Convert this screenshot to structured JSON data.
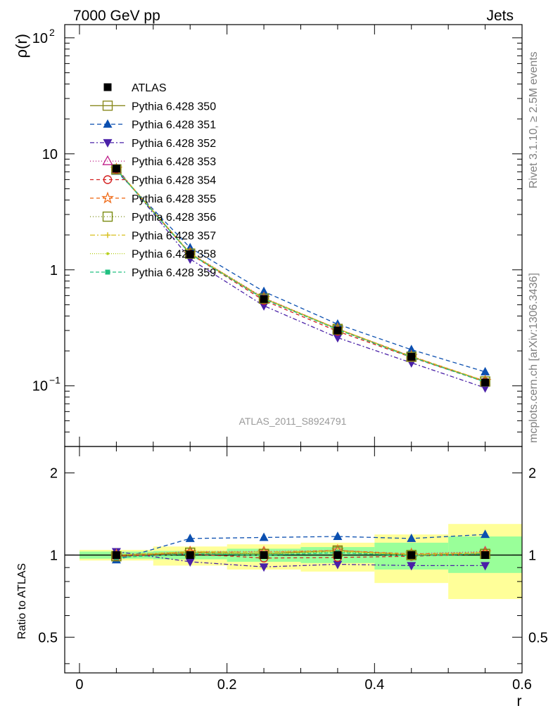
{
  "header": {
    "left": "7000 GeV pp",
    "right": "Jets"
  },
  "side_text": {
    "rivet": "Rivet 3.1.10, ≥ 2.5M events",
    "source": "mcplots.cern.ch [arXiv:1306.3436]"
  },
  "analysis_label": "ATLAS_2011_S8924791",
  "chart_data": [
    {
      "type": "line",
      "ylabel": "ρ(r)",
      "yscale": "log",
      "ylim": [
        0.03,
        130
      ],
      "xlim": [
        -0.02,
        0.6
      ],
      "yticks": [
        {
          "v": 0.1,
          "base": "10",
          "exp": "−1"
        },
        {
          "v": 1,
          "base": "1",
          "exp": ""
        },
        {
          "v": 10,
          "base": "10",
          "exp": ""
        },
        {
          "v": 100,
          "base": "10",
          "exp": "2"
        }
      ],
      "x": [
        0.05,
        0.15,
        0.25,
        0.35,
        0.45,
        0.55
      ],
      "series": [
        {
          "name": "ATLAS",
          "color": "#000000",
          "marker": "square-filled",
          "dash": "none",
          "values": [
            7.45,
            1.36,
            0.56,
            0.3,
            0.178,
            0.107
          ],
          "data": true
        },
        {
          "name": "Pythia 6.428 350",
          "color": "#8a8a20",
          "marker": "square-open",
          "dash": "solid",
          "values": [
            7.3,
            1.38,
            0.565,
            0.31,
            0.178,
            0.109
          ]
        },
        {
          "name": "Pythia 6.428 351",
          "color": "#0b4fb0",
          "marker": "triangle-up",
          "dash": "6,4",
          "values": [
            7.1,
            1.55,
            0.65,
            0.34,
            0.205,
            0.132
          ]
        },
        {
          "name": "Pythia 6.428 352",
          "color": "#4a21a8",
          "marker": "triangle-down",
          "dash": "6,3,2,3",
          "values": [
            7.6,
            1.24,
            0.49,
            0.26,
            0.158,
            0.096
          ]
        },
        {
          "name": "Pythia 6.428 353",
          "color": "#c0208a",
          "marker": "triangle-up-open",
          "dash": "1,3",
          "values": [
            7.4,
            1.4,
            0.575,
            0.31,
            0.18,
            0.11
          ]
        },
        {
          "name": "Pythia 6.428 354",
          "color": "#d42020",
          "marker": "circle-open",
          "dash": "5,4",
          "values": [
            7.35,
            1.37,
            0.545,
            0.295,
            0.176,
            0.108
          ]
        },
        {
          "name": "Pythia 6.428 355",
          "color": "#f07020",
          "marker": "star-open",
          "dash": "5,4",
          "values": [
            7.4,
            1.39,
            0.57,
            0.31,
            0.18,
            0.11
          ]
        },
        {
          "name": "Pythia 6.428 356",
          "color": "#7a8a10",
          "marker": "square-open",
          "dash": "1,3",
          "values": [
            7.35,
            1.38,
            0.565,
            0.305,
            0.178,
            0.109
          ]
        },
        {
          "name": "Pythia 6.428 357",
          "color": "#d8c020",
          "marker": "cross",
          "dash": "7,3,2,3",
          "values": [
            7.4,
            1.39,
            0.57,
            0.31,
            0.179,
            0.11
          ]
        },
        {
          "name": "Pythia 6.428 358",
          "color": "#b8d020",
          "marker": "dot",
          "dash": "1,2",
          "values": [
            7.4,
            1.38,
            0.565,
            0.305,
            0.178,
            0.109
          ]
        },
        {
          "name": "Pythia 6.428 359",
          "color": "#20c080",
          "marker": "square-filled-small",
          "dash": "5,3",
          "values": [
            7.3,
            1.37,
            0.56,
            0.305,
            0.177,
            0.108
          ]
        }
      ]
    },
    {
      "type": "line",
      "ylabel": "Ratio to ATLAS",
      "xlabel": "r",
      "yscale": "log",
      "ylim": [
        0.37,
        2.5
      ],
      "xlim": [
        -0.02,
        0.6
      ],
      "yticks": [
        {
          "v": 0.5,
          "label": "0.5"
        },
        {
          "v": 1,
          "label": "1"
        },
        {
          "v": 2,
          "label": "2"
        }
      ],
      "xticks": [
        {
          "v": 0,
          "label": "0"
        },
        {
          "v": 0.2,
          "label": "0.2"
        },
        {
          "v": 0.4,
          "label": "0.4"
        },
        {
          "v": 0.6,
          "label": "0.6"
        }
      ],
      "bands": [
        {
          "x0": 0.0,
          "x1": 0.1,
          "yellow": [
            0.955,
            1.045
          ],
          "green": [
            0.97,
            1.03
          ]
        },
        {
          "x0": 0.1,
          "x1": 0.2,
          "yellow": [
            0.915,
            1.075
          ],
          "green": [
            0.965,
            1.035
          ]
        },
        {
          "x0": 0.2,
          "x1": 0.3,
          "yellow": [
            0.885,
            1.095
          ],
          "green": [
            0.945,
            1.055
          ]
        },
        {
          "x0": 0.3,
          "x1": 0.4,
          "yellow": [
            0.87,
            1.11
          ],
          "green": [
            0.935,
            1.07
          ]
        },
        {
          "x0": 0.4,
          "x1": 0.5,
          "yellow": [
            0.79,
            1.19
          ],
          "green": [
            0.885,
            1.11
          ]
        },
        {
          "x0": 0.5,
          "x1": 0.6,
          "yellow": [
            0.69,
            1.3
          ],
          "green": [
            0.86,
            1.17
          ]
        }
      ],
      "x": [
        0.05,
        0.15,
        0.25,
        0.35,
        0.45,
        0.55
      ],
      "series": [
        {
          "name": "Pythia 6.428 350",
          "values": [
            0.99,
            1.02,
            1.01,
            1.04,
            1.0,
            1.01
          ]
        },
        {
          "name": "Pythia 6.428 351",
          "values": [
            0.96,
            1.15,
            1.16,
            1.17,
            1.15,
            1.19
          ]
        },
        {
          "name": "Pythia 6.428 352",
          "values": [
            1.03,
            0.945,
            0.905,
            0.925,
            0.915,
            0.915
          ]
        },
        {
          "name": "Pythia 6.428 353",
          "values": [
            1.0,
            1.03,
            1.03,
            1.04,
            1.01,
            1.03
          ]
        },
        {
          "name": "Pythia 6.428 354",
          "values": [
            0.99,
            1.01,
            0.975,
            0.98,
            0.99,
            1.01
          ]
        },
        {
          "name": "Pythia 6.428 355",
          "values": [
            1.0,
            1.025,
            1.025,
            1.04,
            1.01,
            1.02
          ]
        },
        {
          "name": "Pythia 6.428 356",
          "values": [
            0.99,
            1.02,
            1.01,
            1.03,
            1.0,
            1.01
          ]
        },
        {
          "name": "Pythia 6.428 357",
          "values": [
            1.0,
            1.03,
            1.025,
            1.035,
            1.005,
            1.02
          ]
        },
        {
          "name": "Pythia 6.428 358",
          "values": [
            1.0,
            1.02,
            1.01,
            1.03,
            1.0,
            1.01
          ]
        },
        {
          "name": "Pythia 6.428 359",
          "values": [
            0.98,
            1.01,
            1.0,
            1.02,
            0.995,
            1.01
          ]
        }
      ]
    }
  ]
}
